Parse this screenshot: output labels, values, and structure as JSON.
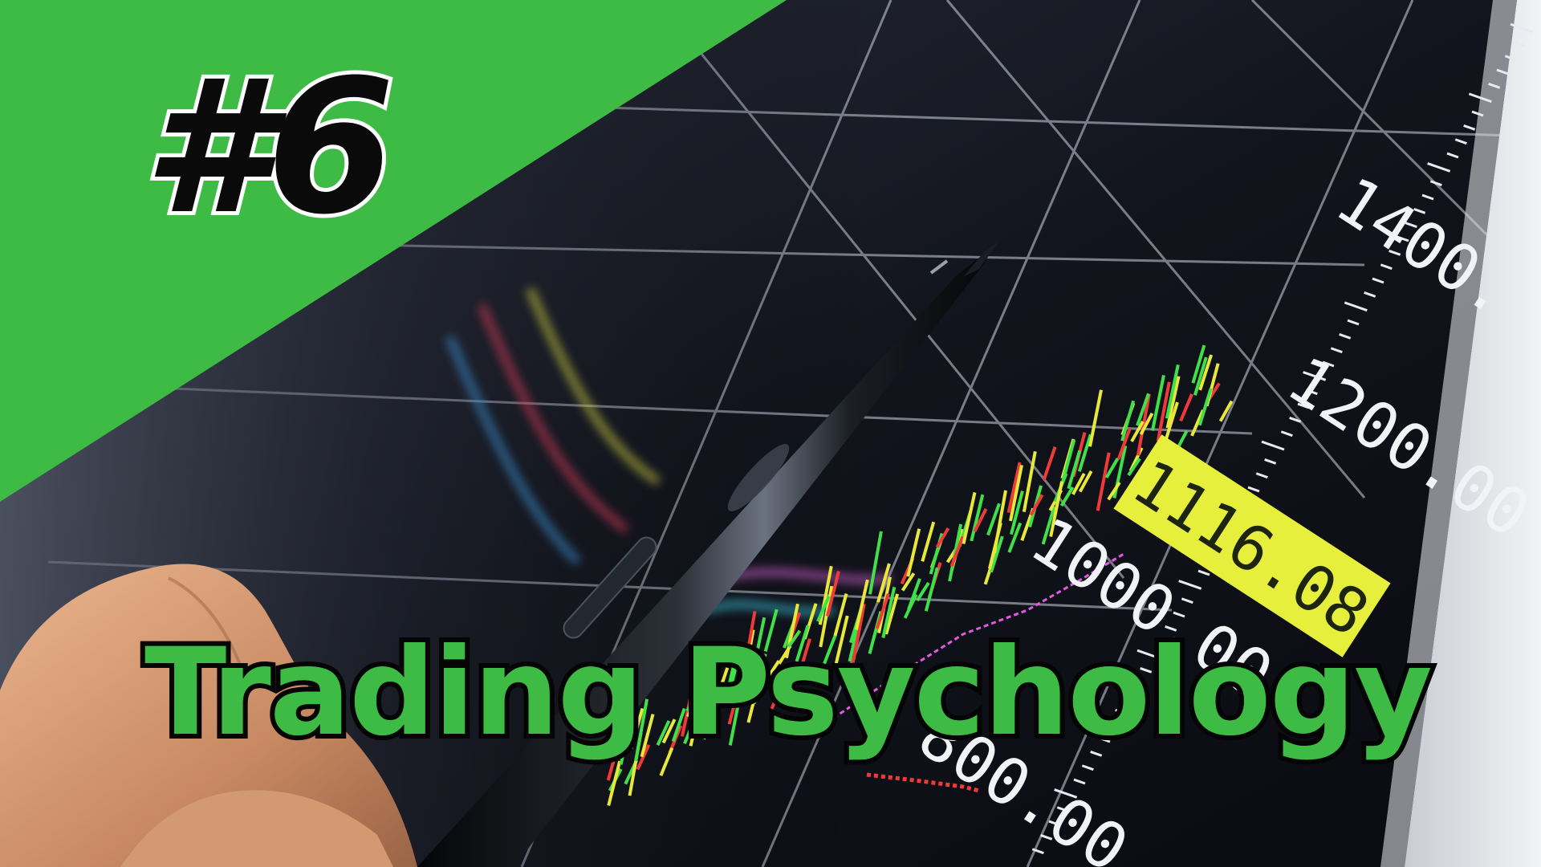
{
  "overlay": {
    "episode": "#6",
    "title": "Trading Psychology",
    "accent_color": "#3dbb45"
  },
  "monitor": {
    "price_tag": "1116.08",
    "axis_labels": [
      "1400.",
      "1200.00",
      "1000.00",
      "800.00"
    ],
    "price_tag_color": "#e6ef3c"
  },
  "photo_elements": [
    "hand",
    "pen",
    "candlestick-chart-screen"
  ]
}
